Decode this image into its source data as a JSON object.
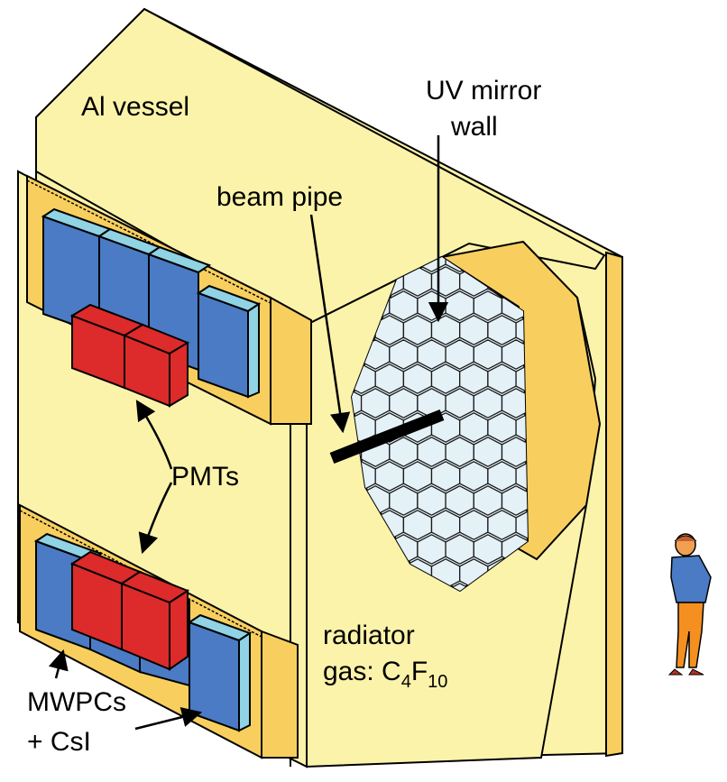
{
  "labels": {
    "vessel": "Al vessel",
    "mirror_line1": "UV mirror",
    "mirror_line2": "wall",
    "beam_pipe": "beam pipe",
    "pmts": "PMTs",
    "radiator_line1": "radiator",
    "radiator_gas_prefix": "gas: C",
    "radiator_sub1": "4",
    "radiator_mid": "F",
    "radiator_sub2": "10",
    "mwpcs_line1": "MWPCs",
    "mwpcs_line2": "+ CsI"
  },
  "colors": {
    "vessel": "#fbf3aa",
    "frame": "#f8cf5f",
    "pmt": "#dd2a2a",
    "mwpc_blue": "#4a7bc4",
    "mwpc_light": "#8fd3e4",
    "mirror": "#e4f1f7",
    "beam_pipe": "#000000",
    "outline": "#000000"
  }
}
